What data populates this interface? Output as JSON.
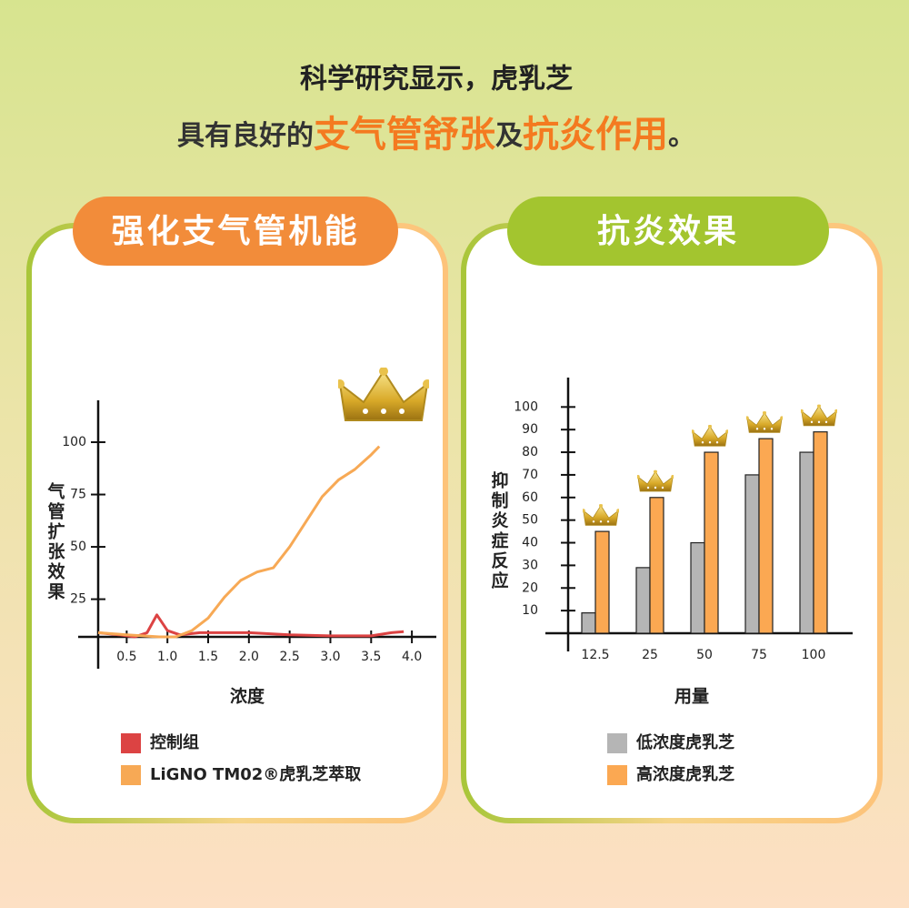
{
  "header": {
    "line1": "科学研究显示，虎乳芝",
    "line2": [
      "具有良好的",
      "支气管舒张",
      "及",
      "抗炎作用",
      "。"
    ]
  },
  "chart_data": [
    {
      "type": "line",
      "title": "强化支气管机能",
      "ylabel": "气管扩张效果",
      "xlabel": "浓度",
      "xlim": [
        0.15,
        4.3
      ],
      "ylim": [
        7,
        120
      ],
      "xticks": [
        0.5,
        {
          "value": 1,
          "label": "1.0"
        },
        1.5,
        {
          "value": 2,
          "label": "2.0"
        },
        2.5,
        {
          "value": 3,
          "label": "3.0"
        },
        3.5,
        {
          "value": 4,
          "label": "4.0"
        }
      ],
      "yticks": [
        25,
        50,
        75,
        100
      ],
      "series": [
        {
          "name": "控制组",
          "color": "#dc4343",
          "x": [
            0.15,
            0.4,
            0.6,
            0.75,
            0.87,
            1.0,
            1.15,
            1.4,
            2.0,
            2.5,
            3.0,
            3.5,
            3.75,
            3.9
          ],
          "values": [
            9,
            8,
            7,
            9,
            17.5,
            10,
            8,
            9,
            9,
            8,
            7.5,
            7.5,
            9,
            9.5
          ]
        },
        {
          "name": "LiGNO TM02®虎乳芝萃取",
          "color": "#f7a955",
          "x": [
            0.15,
            0.5,
            0.9,
            1.1,
            1.3,
            1.5,
            1.7,
            1.9,
            2.1,
            2.3,
            2.5,
            2.7,
            2.9,
            3.1,
            3.3,
            3.5,
            3.6
          ],
          "values": [
            9,
            8,
            7,
            7,
            10,
            16,
            26,
            34,
            38,
            40,
            50,
            62,
            74,
            82,
            87,
            94,
            98
          ]
        }
      ]
    },
    {
      "type": "bar",
      "title": "抗炎效果",
      "ylabel": "抑制炎症反应",
      "xlabel": "用量",
      "categories": [
        "12.5",
        "25",
        "50",
        "75",
        "100"
      ],
      "ylim": [
        0,
        113
      ],
      "yticks": [
        10,
        20,
        30,
        40,
        50,
        60,
        70,
        80,
        90,
        100
      ],
      "series": [
        {
          "name": "低浓度虎乳芝",
          "color": "#b5b5b5",
          "values": [
            9,
            29,
            40,
            70,
            80
          ]
        },
        {
          "name": "高浓度虎乳芝",
          "color": "#fba852",
          "values": [
            45,
            60,
            80,
            86,
            89
          ]
        }
      ]
    }
  ]
}
